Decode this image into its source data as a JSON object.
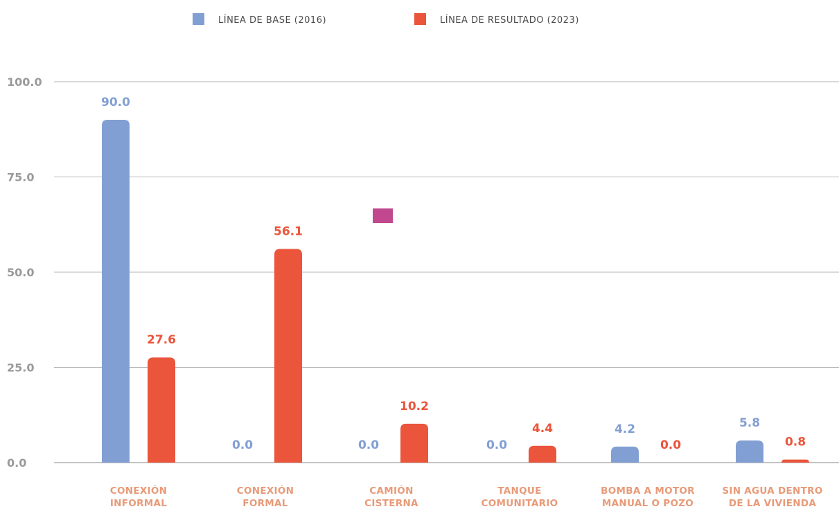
{
  "chart_data": {
    "type": "bar",
    "categories": [
      [
        "CONEXIÓN",
        "INFORMAL"
      ],
      [
        "CONEXIÓN",
        "FORMAL"
      ],
      [
        "CAMIÓN",
        "CISTERNA"
      ],
      [
        "TANQUE",
        "COMUNITARIO"
      ],
      [
        "BOMBA A MOTOR",
        "MANUAL O POZO"
      ],
      [
        "SIN AGUA DENTRO",
        "DE LA VIVIENDA"
      ]
    ],
    "series": [
      {
        "name": "LÍNEA DE BASE (2016)",
        "color": "#829fd3",
        "values": [
          90.0,
          0.0,
          0.0,
          0.0,
          4.2,
          5.8
        ]
      },
      {
        "name": "LÍNEA DE RESULTADO (2023)",
        "color": "#ea553b",
        "values": [
          27.6,
          56.1,
          10.2,
          4.4,
          0.0,
          0.8
        ]
      }
    ],
    "value_labels": [
      [
        "90.0",
        "0.0",
        "0.0",
        "0.0",
        "4.2",
        "5.8"
      ],
      [
        "27.6",
        "56.1",
        "10.2",
        "4.4",
        "0.0",
        "0.8"
      ]
    ],
    "ylim": [
      0,
      100
    ],
    "yticks": [
      0,
      25,
      50,
      75,
      100
    ],
    "ytick_labels": [
      "0.0",
      "25.0",
      "50.0",
      "75.0",
      "100.0"
    ],
    "grid": true,
    "legend_position": "top-center",
    "title": "",
    "xlabel": "",
    "ylabel": "",
    "marker_color": "#c1488f"
  }
}
